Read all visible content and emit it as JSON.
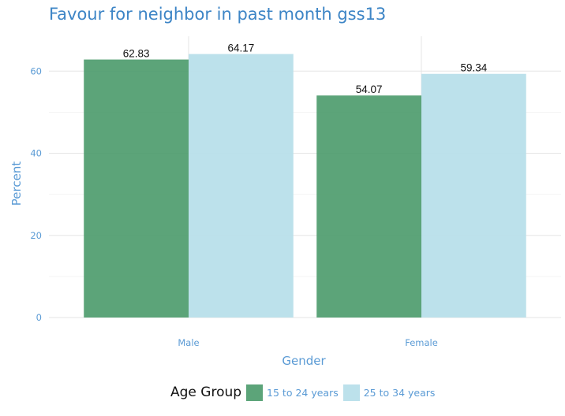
{
  "chart_data": {
    "type": "bar",
    "title": "Favour for neighbor in past month gss13",
    "xlabel": "Gender",
    "ylabel": "Percent",
    "categories": [
      "Male",
      "Female"
    ],
    "series": [
      {
        "name": "15 to 24 years",
        "values": [
          62.83,
          54.07
        ],
        "labels": [
          "62.83",
          "54.07"
        ],
        "color": "#4a9a6a"
      },
      {
        "name": "25 to 34 years",
        "values": [
          64.17,
          59.34
        ],
        "labels": [
          "64.17",
          "59.34"
        ],
        "color": "#b8dfea"
      }
    ],
    "ylim": [
      0,
      68.5
    ],
    "yticks": [
      0,
      20,
      40,
      60
    ],
    "ytick_labels": [
      "0",
      "20",
      "40",
      "60"
    ],
    "grid": true,
    "legend": {
      "title": "Age Group",
      "position": "bottom"
    }
  }
}
